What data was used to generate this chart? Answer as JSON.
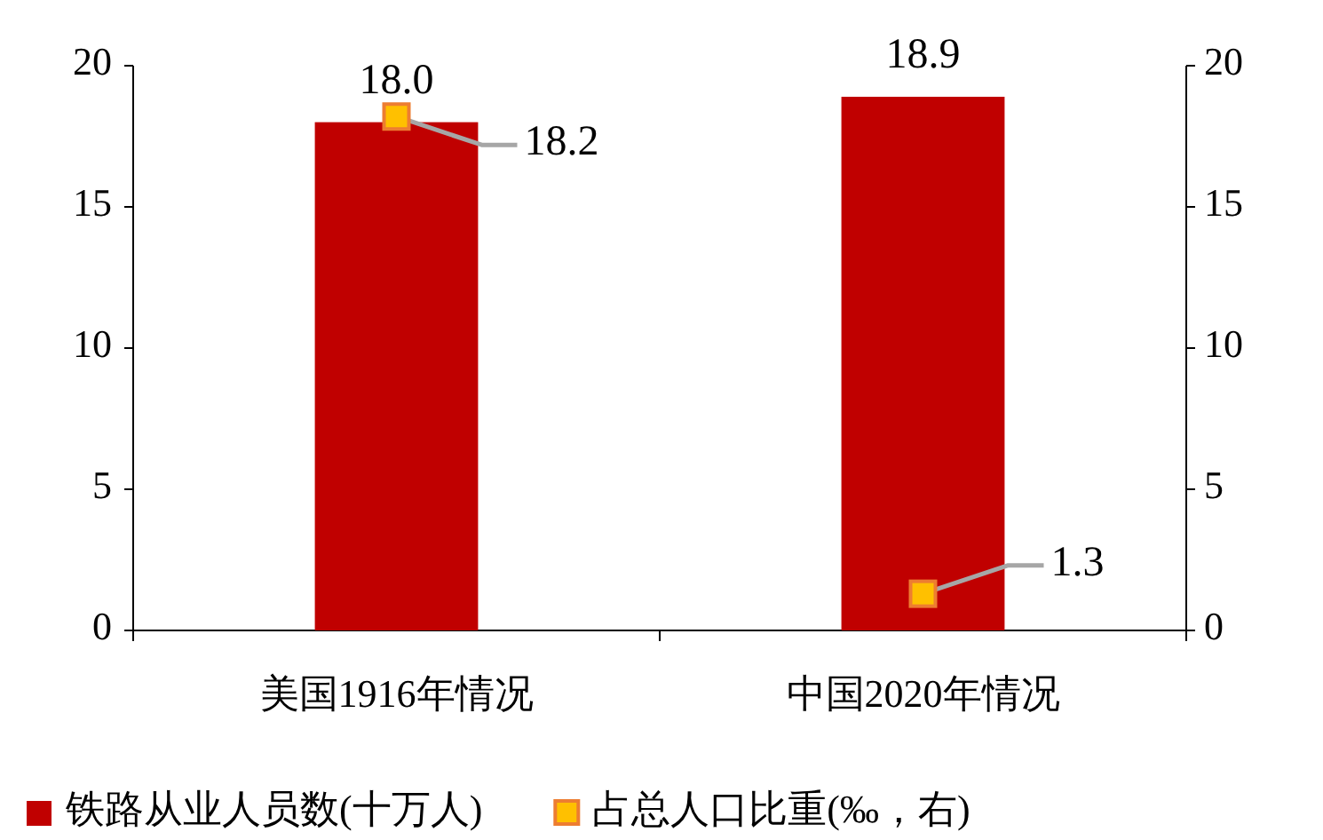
{
  "chart_data": {
    "type": "bar",
    "categories": [
      "美国1916年情况",
      "中国2020年情况"
    ],
    "series": [
      {
        "name": "铁路从业人员数(十万人)",
        "color": "#c00000",
        "values": [
          18.0,
          18.9
        ],
        "value_labels": [
          "18.0",
          "18.9"
        ]
      },
      {
        "name": "占总人口比重(‰，右)",
        "type": "scatter",
        "axis": "y2",
        "color": "#ffc000",
        "marker": "square",
        "values": [
          18.2,
          1.3
        ],
        "value_labels": [
          "18.2",
          "1.3"
        ]
      }
    ],
    "ylim": [
      0,
      20
    ],
    "yticks": [
      0,
      5,
      10,
      15,
      20
    ],
    "y2lim": [
      0,
      20
    ],
    "y2ticks": [
      0,
      5,
      10,
      15,
      20
    ],
    "grid": false,
    "legend": "bottom"
  }
}
